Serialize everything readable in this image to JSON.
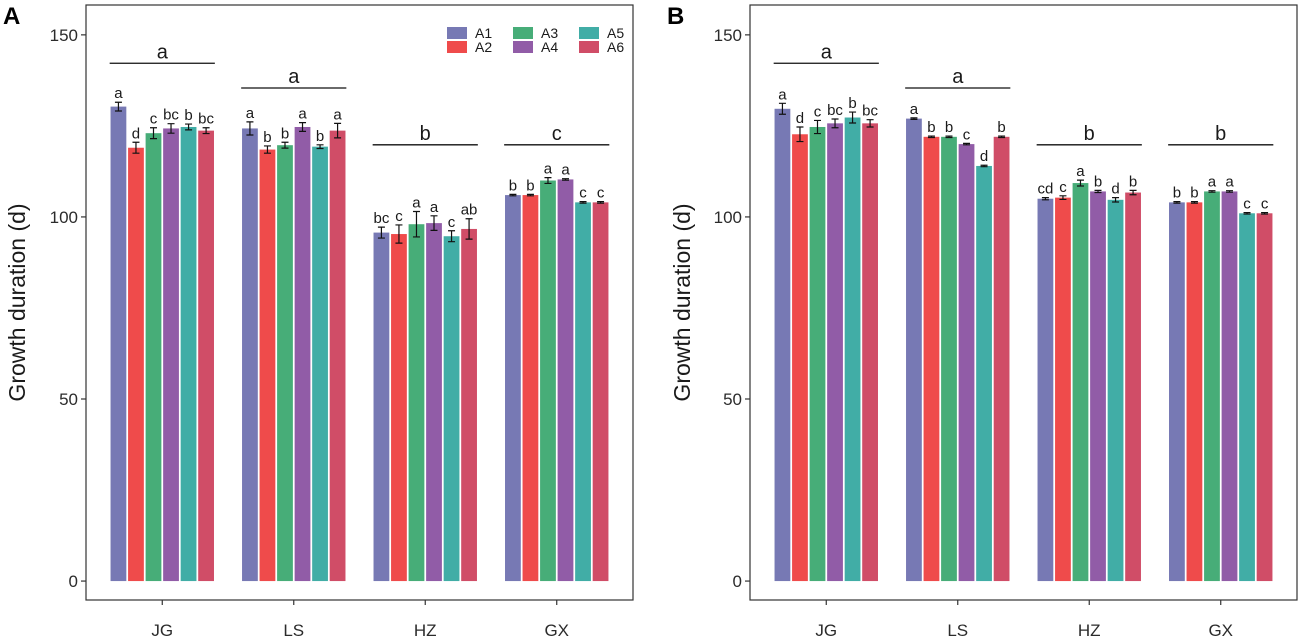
{
  "chart_data": [
    {
      "panel_label": "A",
      "type": "bar",
      "ylabel": "Growth duration (d)",
      "categories": [
        "JG",
        "LS",
        "HZ",
        "GX"
      ],
      "ylim": [
        -5.2,
        158.2
      ],
      "yticks": [
        0,
        50,
        100,
        150
      ],
      "grid": false,
      "legend_position": "top-right",
      "group_letters": [
        "a",
        "a",
        "b",
        "c"
      ],
      "series": [
        {
          "name": "A1",
          "color": "#7779B4",
          "values": [
            130.3,
            124.3,
            95.7,
            106.0
          ],
          "errors": [
            1.2,
            1.8,
            1.5,
            0.2
          ],
          "letters": [
            "a",
            "a",
            "bc",
            "b"
          ]
        },
        {
          "name": "A2",
          "color": "#EF4B4B",
          "values": [
            119.0,
            118.5,
            95.3,
            106.0
          ],
          "errors": [
            1.5,
            1.0,
            2.5,
            0.2
          ],
          "letters": [
            "d",
            "b",
            "c",
            "b"
          ]
        },
        {
          "name": "A3",
          "color": "#47AD78",
          "values": [
            123.0,
            119.7,
            98.0,
            110.0
          ],
          "errors": [
            1.5,
            0.8,
            3.5,
            0.8
          ],
          "letters": [
            "c",
            "b",
            "a",
            "a"
          ]
        },
        {
          "name": "A4",
          "color": "#915CA7",
          "values": [
            124.3,
            124.7,
            98.3,
            110.3
          ],
          "errors": [
            1.3,
            1.2,
            2.0,
            0.2
          ],
          "letters": [
            "bc",
            "a",
            "a",
            "a"
          ]
        },
        {
          "name": "A5",
          "color": "#41ADA6",
          "values": [
            124.7,
            119.3,
            94.7,
            104.0
          ],
          "errors": [
            0.8,
            0.5,
            1.5,
            0.2
          ],
          "letters": [
            "b",
            "b",
            "c",
            "c"
          ]
        },
        {
          "name": "A6",
          "color": "#D04D67",
          "values": [
            123.7,
            123.7,
            96.7,
            104.0
          ],
          "errors": [
            0.8,
            2.0,
            2.8,
            0.2
          ],
          "letters": [
            "bc",
            "a",
            "ab",
            "c"
          ]
        }
      ]
    },
    {
      "panel_label": "B",
      "type": "bar",
      "ylabel": "Growth duration (d)",
      "categories": [
        "JG",
        "LS",
        "HZ",
        "GX"
      ],
      "ylim": [
        -5.2,
        158.2
      ],
      "yticks": [
        0,
        50,
        100,
        150
      ],
      "grid": false,
      "group_letters": [
        "a",
        "a",
        "b",
        "b"
      ],
      "series": [
        {
          "color": "#7779B4",
          "values": [
            129.7,
            127.0,
            105.0,
            104.0
          ],
          "errors": [
            1.5,
            0.2,
            0.3,
            0.2
          ],
          "letters": [
            "a",
            "a",
            "cd",
            "b"
          ]
        },
        {
          "color": "#EF4B4B",
          "values": [
            122.7,
            122.0,
            105.3,
            104.0
          ],
          "errors": [
            2.0,
            0.2,
            0.5,
            0.2
          ],
          "letters": [
            "d",
            "b",
            "c",
            "b"
          ]
        },
        {
          "color": "#47AD78",
          "values": [
            124.7,
            122.0,
            109.3,
            107.0
          ],
          "errors": [
            1.8,
            0.2,
            0.8,
            0.2
          ],
          "letters": [
            "c",
            "b",
            "a",
            "a"
          ]
        },
        {
          "color": "#915CA7",
          "values": [
            125.7,
            120.0,
            107.0,
            107.0
          ],
          "errors": [
            1.2,
            0.2,
            0.3,
            0.2
          ],
          "letters": [
            "bc",
            "c",
            "b",
            "a"
          ]
        },
        {
          "color": "#41ADA6",
          "values": [
            127.3,
            114.0,
            104.7,
            101.0
          ],
          "errors": [
            1.5,
            0.2,
            0.6,
            0.2
          ],
          "letters": [
            "b",
            "d",
            "d",
            "c"
          ]
        },
        {
          "color": "#D04D67",
          "values": [
            125.7,
            122.0,
            106.7,
            101.0
          ],
          "errors": [
            1.0,
            0.2,
            0.6,
            0.2
          ],
          "letters": [
            "bc",
            "b",
            "b",
            "c"
          ]
        }
      ]
    }
  ]
}
